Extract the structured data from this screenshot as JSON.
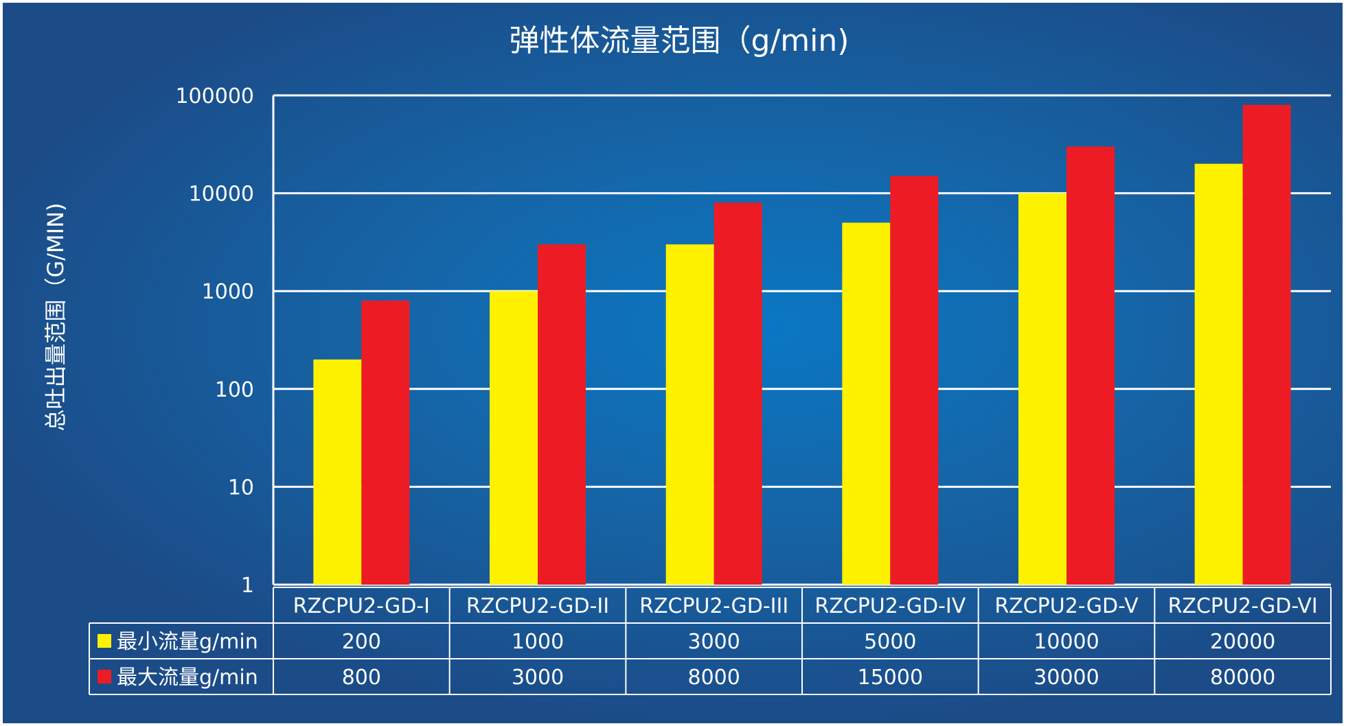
{
  "chart_data": {
    "type": "bar",
    "title": "弹性体流量范围（g/min)",
    "ylabel": "总吐出量范围（G/MIN)",
    "yscale": "log",
    "ylim": [
      1,
      100000
    ],
    "yticks": [
      "1",
      "10",
      "100",
      "1000",
      "10000",
      "100000"
    ],
    "ytick_values": [
      1,
      10,
      100,
      1000,
      10000,
      100000
    ],
    "grid": true,
    "categories": [
      "RZCPU2-GD-I",
      "RZCPU2-GD-II",
      "RZCPU2-GD-III",
      "RZCPU2-GD-IV",
      "RZCPU2-GD-V",
      "RZCPU2-GD-VI"
    ],
    "series": [
      {
        "name": "最小流量g/min",
        "color": "#fff200",
        "values": [
          200,
          1000,
          3000,
          5000,
          10000,
          20000
        ],
        "labels": [
          "200",
          "1000",
          "3000",
          "5000",
          "10000",
          "20000"
        ]
      },
      {
        "name": "最大流量g/min",
        "color": "#ed1c24",
        "values": [
          800,
          3000,
          8000,
          15000,
          30000,
          80000
        ],
        "labels": [
          "800",
          "3000",
          "8000",
          "15000",
          "30000",
          "80000"
        ]
      }
    ],
    "data_table": true
  },
  "colors": {
    "background": "#1566a8",
    "grid": "#ffffff",
    "text": "#ffffff"
  }
}
